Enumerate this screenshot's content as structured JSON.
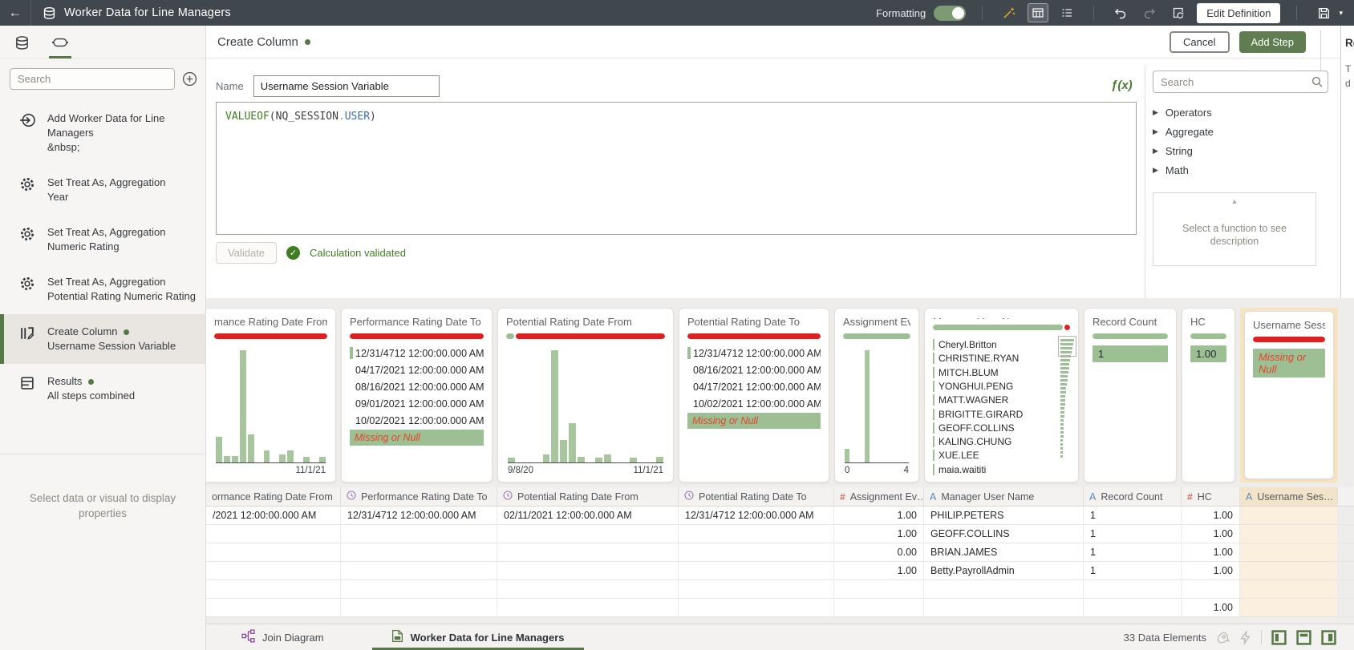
{
  "topbar": {
    "title": "Worker Data for Line Managers",
    "formatting_label": "Formatting",
    "edit_definition_label": "Edit Definition"
  },
  "right_panel_cut": {
    "heading": "Re",
    "line1": "T",
    "line2": "d"
  },
  "sidebar": {
    "search_placeholder": "Search",
    "steps": [
      {
        "title": "Add Worker Data for Line Managers",
        "subtitle": "&nbsp;"
      },
      {
        "title": "Set Treat As, Aggregation",
        "subtitle": "Year"
      },
      {
        "title": "Set Treat As, Aggregation",
        "subtitle": "Numeric Rating"
      },
      {
        "title": "Set Treat As, Aggregation",
        "subtitle": "Potential Rating Numeric Rating"
      },
      {
        "title": "Create Column",
        "subtitle": "Username Session Variable"
      },
      {
        "title": "Results",
        "subtitle": "All steps combined"
      }
    ],
    "hint": "Select data or visual to display properties"
  },
  "editor": {
    "title": "Create Column",
    "cancel_label": "Cancel",
    "add_step_label": "Add Step",
    "name_label": "Name",
    "name_value": "Username Session Variable",
    "fx_label": "ƒ(x)",
    "formula": {
      "fn": "VALUEOF",
      "open": "(",
      "object": "NQ_SESSION",
      "dot": ".",
      "member": "USER",
      "close": ")"
    },
    "validate_label": "Validate",
    "validated_message": "Calculation validated",
    "functions": {
      "search_placeholder": "Search",
      "groups": [
        "Operators",
        "Aggregate",
        "String",
        "Math"
      ],
      "description_hint": "Select a function to see description"
    }
  },
  "preview": {
    "cards": [
      {
        "title": "mance Rating Date From",
        "x_left": "",
        "x_right": "11/1/21",
        "bars": [
          23,
          6,
          6,
          100,
          25,
          0,
          11,
          0,
          7,
          11,
          0,
          5,
          0,
          5
        ]
      },
      {
        "title": "Performance Rating Date To",
        "items": [
          "12/31/4712 12:00:00.000 AM",
          "04/17/2021 12:00:00.000 AM",
          "08/16/2021 12:00:00.000 AM",
          "09/01/2021 12:00:00.000 AM",
          "10/02/2021 12:00:00.000 AM"
        ],
        "missing_label": "Missing or Null"
      },
      {
        "title": "Potential Rating Date From",
        "x_left": "9/8/20",
        "x_right": "11/1/21",
        "bars": [
          4,
          0,
          0,
          0,
          7,
          100,
          20,
          35,
          5,
          0,
          4,
          7,
          0,
          0,
          4,
          0,
          0,
          5
        ]
      },
      {
        "title": "Potential Rating Date To",
        "items": [
          "12/31/4712 12:00:00.000 AM",
          "08/16/2021 12:00:00.000 AM",
          "04/17/2021 12:00:00.000 AM",
          "10/02/2021 12:00:00.000 AM"
        ],
        "missing_label": "Missing or Null"
      },
      {
        "title": "Assignment Eve…",
        "x_left": "0",
        "x_right": "4",
        "bars": [
          12,
          0,
          0,
          100,
          0,
          0,
          0,
          0,
          0,
          0
        ]
      },
      {
        "title": "Manager User Name",
        "items": [
          "Cheryl.Britton",
          "CHRISTINE.RYAN",
          "MITCH.BLUM",
          "YONGHUI.PENG",
          "MATT.WAGNER",
          "BRIGITTE.GIRARD",
          "GEOFF.COLLINS",
          "KALING.CHUNG",
          "XUE.LEE",
          "maia.waititi"
        ],
        "spark": [
          100,
          93,
          87,
          81,
          76,
          71,
          66,
          62,
          58,
          54,
          50,
          47,
          44,
          41,
          38,
          36,
          34,
          32,
          30,
          28,
          26,
          25,
          23,
          22,
          21,
          20,
          19,
          18,
          17,
          16
        ]
      },
      {
        "title": "Record Count",
        "value": "1"
      },
      {
        "title": "HC",
        "value": "1.00"
      },
      {
        "title": "Username Sessi…",
        "value": "Missing or Null"
      }
    ],
    "table": {
      "headers": [
        "ormance Rating Date From",
        "Performance Rating Date To",
        "Potential Rating Date From",
        "Potential Rating Date To",
        "Assignment Ev…",
        "Manager User Name",
        "Record Count",
        "HC",
        "Username Ses…"
      ],
      "rows": [
        [
          "/2021 12:00:00.000 AM",
          "12/31/4712 12:00:00.000 AM",
          "02/11/2021 12:00:00.000 AM",
          "12/31/4712 12:00:00.000 AM",
          "1.00",
          "PHILIP.PETERS",
          "1",
          "1.00",
          ""
        ],
        [
          "",
          "",
          "",
          "",
          "1.00",
          "GEOFF.COLLINS",
          "1",
          "1.00",
          ""
        ],
        [
          "",
          "",
          "",
          "",
          "0.00",
          "BRIAN.JAMES",
          "1",
          "1.00",
          ""
        ],
        [
          "",
          "",
          "",
          "",
          "1.00",
          "Betty.PayrollAdmin",
          "1",
          "1.00",
          ""
        ],
        [
          "",
          "",
          "",
          "",
          "",
          "",
          "",
          "",
          ""
        ],
        [
          "",
          "",
          "",
          "",
          "",
          "",
          "",
          "1.00",
          ""
        ]
      ]
    }
  },
  "statusbar": {
    "join_diagram_label": "Join Diagram",
    "dataset_tab_label": "Worker Data for Line Managers",
    "elements_count": "33 Data Elements"
  },
  "colors": {
    "accent_green": "#567846",
    "quality_green": "#9cbf93",
    "quality_red": "#e02020",
    "missing_red": "#e8432d",
    "selection_tan": "#f6e3c2"
  }
}
